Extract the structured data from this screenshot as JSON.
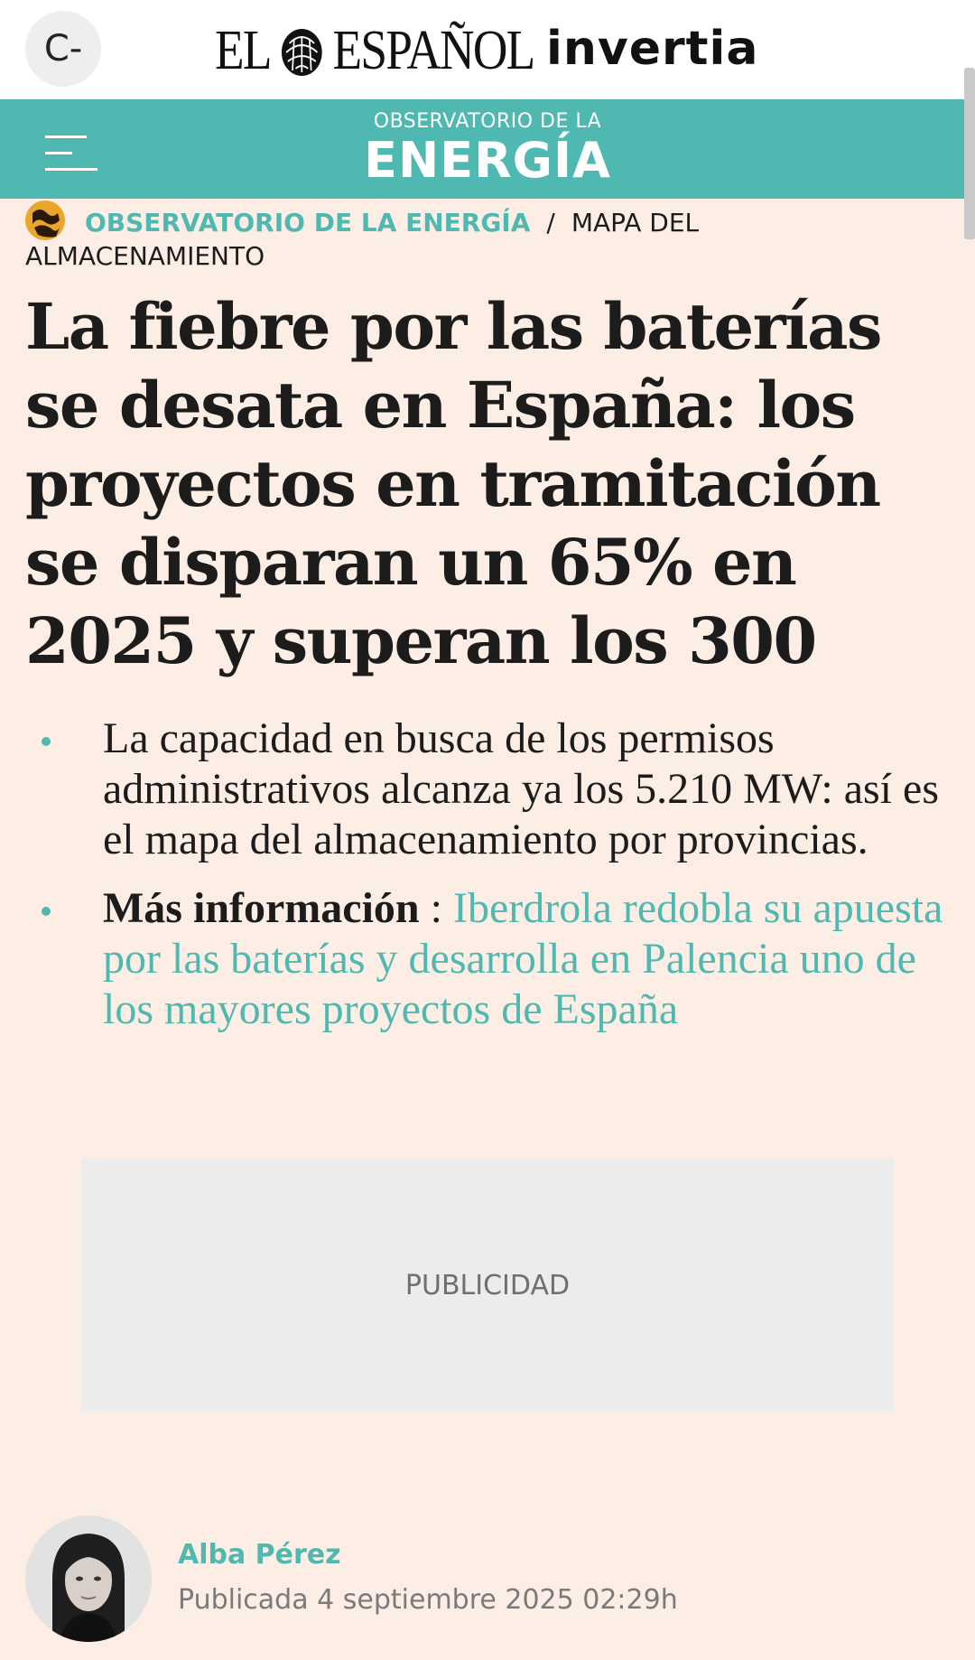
{
  "top_bar": {
    "c_button": "C-",
    "logo_left": "EL",
    "logo_right": "ESPAÑOL",
    "logo_secondary": "invertia"
  },
  "section_banner": {
    "small_text": "OBSERVATORIO DE LA",
    "big_text": "ENERGÍA"
  },
  "breadcrumb": {
    "link": "OBSERVATORIO DE LA ENERGÍA",
    "separator": "/",
    "current": "MAPA DEL ALMACENAMIENTO"
  },
  "article": {
    "headline": "La fiebre por las baterías se desata en España: los proyectos en tramitación se disparan un 65% en 2025 y superan los 300",
    "bullets": {
      "first": "La capacidad en busca de los permisos administrativos alcanza ya los 5.210 MW: así es el mapa del almacenamiento por provincias.",
      "more_label": "Más información",
      "more_sep": " : ",
      "more_link": "Iberdrola redobla su apuesta por las baterías y desarrolla en Palencia uno de los mayores proyectos de España"
    }
  },
  "ad": {
    "label": "PUBLICIDAD"
  },
  "byline": {
    "author": "Alba Pérez",
    "published": "Publicada 4 septiembre 2025 02:29h"
  },
  "colors": {
    "accent": "#4fb8b0",
    "page_background": "#fdeee5",
    "text": "#1c1c1c"
  }
}
